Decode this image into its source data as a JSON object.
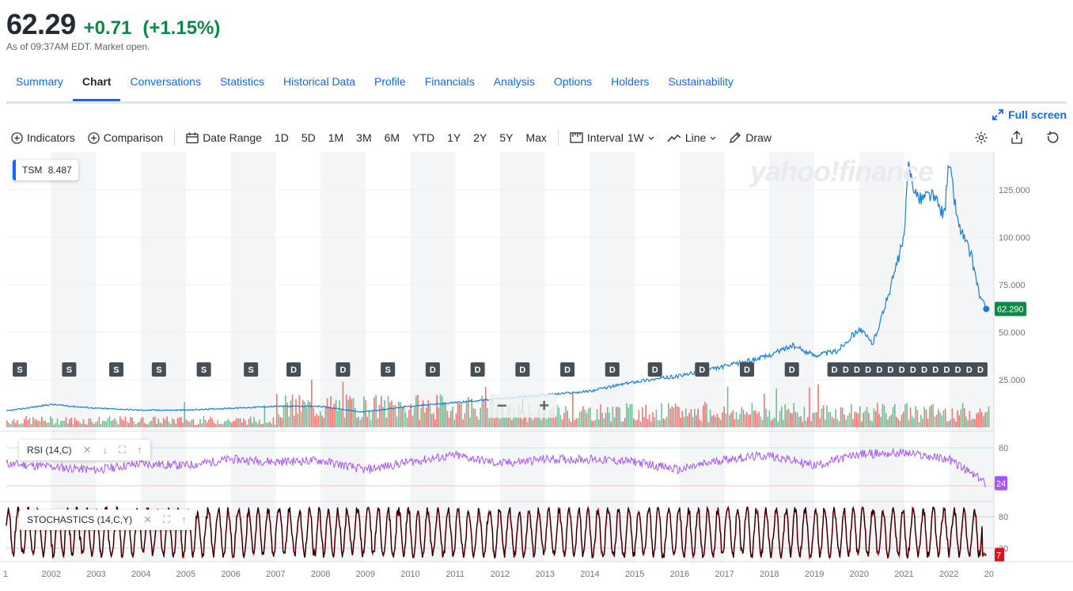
{
  "quote": {
    "price": "62.29",
    "change": "+0.71",
    "change_pct": "(+1.15%)",
    "as_of": "As of 09:37AM EDT. Market open."
  },
  "tabs": [
    "Summary",
    "Chart",
    "Conversations",
    "Statistics",
    "Historical Data",
    "Profile",
    "Financials",
    "Analysis",
    "Options",
    "Holders",
    "Sustainability"
  ],
  "active_tab": "Chart",
  "fullscreen_label": "Full screen",
  "toolbar": {
    "indicators": "Indicators",
    "comparison": "Comparison",
    "date_range": "Date Range",
    "ranges": [
      "1D",
      "5D",
      "1M",
      "3M",
      "6M",
      "YTD",
      "1Y",
      "2Y",
      "5Y",
      "Max"
    ],
    "interval_label": "Interval",
    "interval_value": "1W",
    "chart_type": "Line",
    "draw": "Draw"
  },
  "legend": {
    "symbol": "TSM",
    "value": "8.487"
  },
  "watermark": "yahoo!finance",
  "rsi_label": "RSI (14,C)",
  "stoch_label": "STOCHASTICS (14,C,Y)",
  "colors": {
    "accent": "#0f69ff",
    "up": "#0b8a47",
    "line": "#1a7fd4",
    "rsi": "#a855f7",
    "stoch_k": "#000000",
    "stoch_d": "#e0121e",
    "vol_up": "#4caf7d",
    "vol_down": "#ef5350"
  },
  "chart_data": [
    {
      "type": "line",
      "title": "",
      "series": [
        {
          "name": "TSM",
          "x": [
            2001.0,
            2002.0,
            2003.0,
            2004.0,
            2005.0,
            2006.0,
            2007.0,
            2008.0,
            2008.9,
            2010.0,
            2011.0,
            2012.0,
            2013.0,
            2014.0,
            2015.0,
            2016.0,
            2017.0,
            2017.9,
            2018.5,
            2019.0,
            2019.5,
            2020.0,
            2020.3,
            2020.5,
            2020.75,
            2021.0,
            2021.1,
            2021.3,
            2021.6,
            2021.9,
            2022.0,
            2022.2,
            2022.5,
            2022.7,
            2022.83
          ],
          "values": [
            8.5,
            12,
            10,
            9,
            9,
            10,
            11,
            11,
            8,
            11,
            13,
            15,
            17,
            19,
            24,
            27,
            32,
            37,
            43,
            38,
            40,
            52,
            44,
            58,
            78,
            100,
            138,
            120,
            123,
            112,
            140,
            108,
            90,
            68,
            62.29
          ]
        }
      ],
      "ylim": [
        0,
        145
      ],
      "y_ticks": [
        "25.000",
        "50.000",
        "75.000",
        "100.000",
        "125.000"
      ],
      "y_tick_values": [
        25,
        50,
        75,
        100,
        125
      ],
      "x_ticks": [
        "1",
        "2002",
        "2003",
        "2004",
        "2005",
        "2006",
        "2007",
        "2008",
        "2009",
        "2010",
        "2011",
        "2012",
        "2013",
        "2014",
        "2015",
        "2016",
        "2017",
        "2018",
        "2019",
        "2020",
        "2021",
        "2022",
        "20"
      ],
      "x_tick_values": [
        2001,
        2002,
        2003,
        2004,
        2005,
        2006,
        2007,
        2008,
        2009,
        2010,
        2011,
        2012,
        2013,
        2014,
        2015,
        2016,
        2017,
        2018,
        2019,
        2020,
        2021,
        2022,
        2023
      ],
      "last_price_label": "62.290",
      "events": [
        {
          "x": 2001.3,
          "label": "S"
        },
        {
          "x": 2002.4,
          "label": "S"
        },
        {
          "x": 2003.45,
          "label": "S"
        },
        {
          "x": 2004.4,
          "label": "S"
        },
        {
          "x": 2005.4,
          "label": "S"
        },
        {
          "x": 2006.45,
          "label": "S"
        },
        {
          "x": 2007.4,
          "label": "D"
        },
        {
          "x": 2008.5,
          "label": "D"
        },
        {
          "x": 2009.5,
          "label": "S"
        },
        {
          "x": 2010.5,
          "label": "D"
        },
        {
          "x": 2011.5,
          "label": "D"
        },
        {
          "x": 2012.5,
          "label": "D"
        },
        {
          "x": 2013.5,
          "label": "D"
        },
        {
          "x": 2014.5,
          "label": "D"
        },
        {
          "x": 2015.45,
          "label": "D"
        },
        {
          "x": 2016.5,
          "label": "D"
        },
        {
          "x": 2017.5,
          "label": "D"
        },
        {
          "x": 2018.5,
          "label": "D"
        },
        {
          "x": 2019.45,
          "label": "D"
        },
        {
          "x": 2019.7,
          "label": "D"
        },
        {
          "x": 2019.95,
          "label": "D"
        },
        {
          "x": 2020.2,
          "label": "D"
        },
        {
          "x": 2020.45,
          "label": "D"
        },
        {
          "x": 2020.7,
          "label": "D"
        },
        {
          "x": 2020.95,
          "label": "D"
        },
        {
          "x": 2021.2,
          "label": "D"
        },
        {
          "x": 2021.45,
          "label": "D"
        },
        {
          "x": 2021.7,
          "label": "D"
        },
        {
          "x": 2021.95,
          "label": "D"
        },
        {
          "x": 2022.2,
          "label": "D"
        },
        {
          "x": 2022.45,
          "label": "D"
        },
        {
          "x": 2022.7,
          "label": "D"
        }
      ]
    },
    {
      "type": "line",
      "title": "",
      "series": [
        {
          "name": "RSI (14,C)",
          "x": [
            2001,
            2002,
            2003,
            2004,
            2005,
            2006,
            2007,
            2008,
            2009,
            2010,
            2011,
            2012,
            2013,
            2014,
            2015,
            2016,
            2017,
            2018,
            2019,
            2020,
            2021,
            2022,
            2022.83
          ],
          "values": [
            55,
            50,
            45,
            55,
            52,
            62,
            58,
            60,
            45,
            58,
            68,
            55,
            62,
            62,
            58,
            45,
            62,
            68,
            52,
            70,
            72,
            62,
            24
          ]
        }
      ],
      "ylim": [
        0,
        100
      ],
      "y_ticks": [
        "80"
      ],
      "y_tick_values": [
        80
      ],
      "last_value_label": "24"
    },
    {
      "type": "line",
      "title": "",
      "series": [
        {
          "name": "%K",
          "x": [],
          "values": []
        },
        {
          "name": "%D",
          "x": [],
          "values": []
        }
      ],
      "ylim": [
        0,
        100
      ],
      "y_ticks": [
        "80",
        "20"
      ],
      "y_tick_values": [
        80,
        20
      ],
      "last_value_label": "7"
    }
  ]
}
